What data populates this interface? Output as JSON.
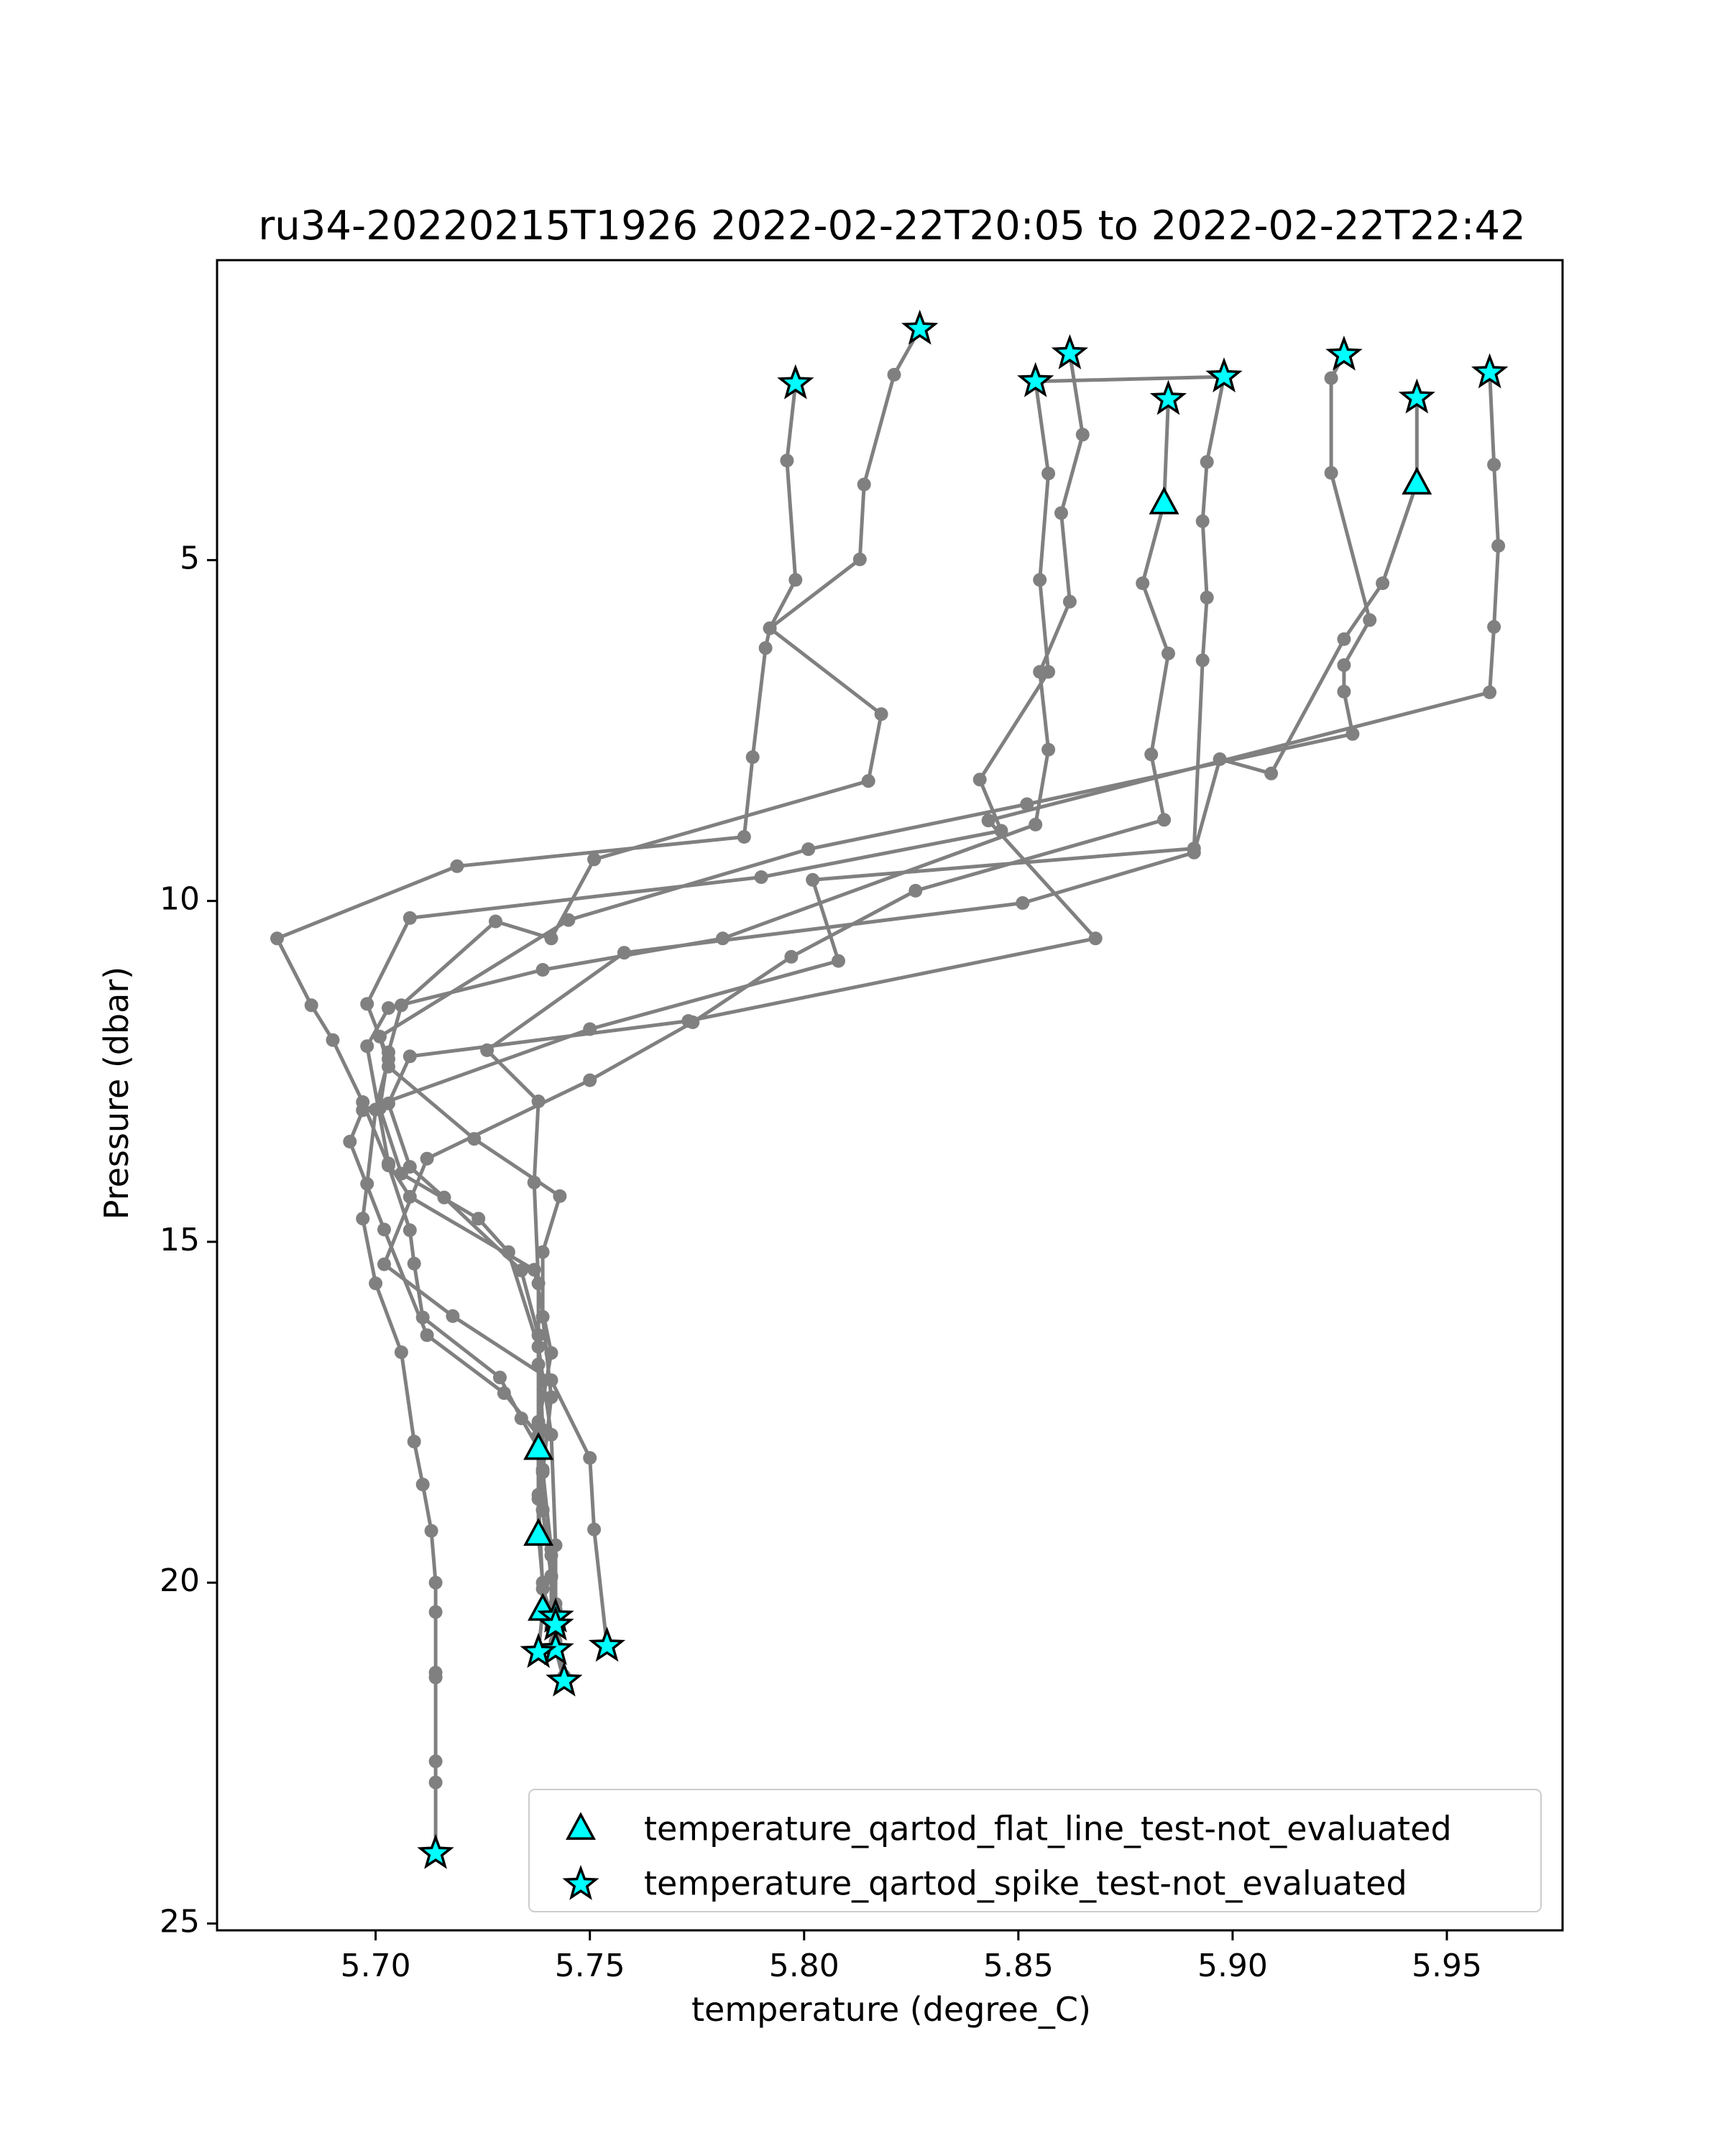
{
  "chart_data": {
    "type": "line",
    "title": "ru34-20220215T1926 2022-02-22T20:05 to 2022-02-22T22:42",
    "xlabel": "temperature (degree_C)",
    "ylabel": "Pressure (dbar)",
    "xlim": [
      5.663,
      5.977
    ],
    "ylim": [
      25.1,
      0.6
    ],
    "y_inverted": true,
    "grid": false,
    "legend_position": "lower-right",
    "xticks": [
      "5.70",
      "5.75",
      "5.80",
      "5.85",
      "5.90",
      "5.95"
    ],
    "xtick_values": [
      5.7,
      5.75,
      5.8,
      5.85,
      5.9,
      5.95
    ],
    "yticks": [
      "5",
      "10",
      "15",
      "20",
      "25"
    ],
    "ytick_values": [
      5,
      10,
      15,
      20,
      25
    ],
    "colors": {
      "profile_line": "#808080",
      "marker_fill": "#00ffff",
      "marker_edge": "#000000"
    },
    "series": [
      {
        "points": [
          [
            5.798,
            2.41
          ],
          [
            5.796,
            3.54
          ],
          [
            5.798,
            5.29
          ],
          [
            5.792,
            6.0
          ],
          [
            5.791,
            6.29
          ],
          [
            5.788,
            7.89
          ],
          [
            5.786,
            9.06
          ],
          [
            5.719,
            9.49
          ],
          [
            5.677,
            10.55
          ],
          [
            5.685,
            11.53
          ],
          [
            5.69,
            12.04
          ],
          [
            5.697,
            12.95
          ],
          [
            5.703,
            13.88
          ],
          [
            5.708,
            14.83
          ],
          [
            5.709,
            15.32
          ],
          [
            5.711,
            16.11
          ],
          [
            5.729,
            16.99
          ],
          [
            5.734,
            17.59
          ],
          [
            5.738,
            18.03
          ],
          [
            5.738,
            18.71
          ],
          [
            5.738,
            19.29
          ],
          [
            5.739,
            20.0
          ],
          [
            5.739,
            20.39
          ],
          [
            5.738,
            21.02
          ]
        ]
      },
      {
        "points": [
          [
            5.827,
            1.61
          ],
          [
            5.821,
            2.28
          ],
          [
            5.814,
            3.89
          ],
          [
            5.813,
            4.99
          ],
          [
            5.792,
            6.0
          ],
          [
            5.818,
            7.26
          ],
          [
            5.815,
            8.24
          ],
          [
            5.751,
            9.39
          ],
          [
            5.741,
            10.55
          ],
          [
            5.728,
            10.3
          ],
          [
            5.706,
            11.53
          ],
          [
            5.703,
            12.22
          ],
          [
            5.701,
            13.04
          ],
          [
            5.706,
            14.0
          ],
          [
            5.724,
            14.66
          ],
          [
            5.731,
            15.15
          ],
          [
            5.738,
            16.54
          ],
          [
            5.741,
            17.83
          ],
          [
            5.742,
            19.45
          ],
          [
            5.742,
            20.39
          ],
          [
            5.744,
            21.37
          ]
        ]
      },
      {
        "points": [
          [
            5.854,
            2.38
          ],
          [
            5.857,
            3.73
          ],
          [
            5.855,
            5.29
          ],
          [
            5.857,
            6.64
          ],
          [
            5.841,
            8.22
          ],
          [
            5.846,
            8.97
          ],
          [
            5.79,
            9.65
          ],
          [
            5.708,
            10.25
          ],
          [
            5.698,
            11.51
          ],
          [
            5.703,
            12.32
          ],
          [
            5.7,
            13.06
          ],
          [
            5.698,
            14.15
          ],
          [
            5.697,
            14.66
          ],
          [
            5.7,
            15.61
          ],
          [
            5.706,
            16.62
          ],
          [
            5.709,
            17.93
          ],
          [
            5.711,
            18.56
          ],
          [
            5.713,
            19.24
          ],
          [
            5.714,
            20.0
          ],
          [
            5.714,
            20.43
          ],
          [
            5.714,
            21.32
          ],
          [
            5.714,
            21.39
          ],
          [
            5.714,
            22.62
          ],
          [
            5.714,
            22.93
          ],
          [
            5.714,
            23.97
          ]
        ]
      },
      {
        "points": [
          [
            5.862,
            1.97
          ],
          [
            5.865,
            3.16
          ],
          [
            5.86,
            4.31
          ],
          [
            5.862,
            5.61
          ],
          [
            5.855,
            6.64
          ],
          [
            5.857,
            7.78
          ],
          [
            5.854,
            8.88
          ],
          [
            5.781,
            10.55
          ],
          [
            5.739,
            11.01
          ],
          [
            5.703,
            11.57
          ],
          [
            5.698,
            12.13
          ],
          [
            5.703,
            13.85
          ],
          [
            5.708,
            14.34
          ],
          [
            5.737,
            15.41
          ],
          [
            5.741,
            16.63
          ],
          [
            5.738,
            17.68
          ],
          [
            5.739,
            18.34
          ],
          [
            5.741,
            19.6
          ],
          [
            5.742,
            20.31
          ],
          [
            5.742,
            20.98
          ],
          [
            5.744,
            21.44
          ]
        ]
      },
      {
        "points": [
          [
            5.854,
            2.38
          ],
          [
            5.898,
            2.31
          ],
          [
            5.894,
            3.56
          ],
          [
            5.893,
            4.43
          ],
          [
            5.894,
            5.55
          ],
          [
            5.893,
            6.47
          ],
          [
            5.891,
            9.23
          ],
          [
            5.802,
            9.69
          ],
          [
            5.808,
            10.88
          ],
          [
            5.75,
            11.88
          ],
          [
            5.697,
            13.07
          ],
          [
            5.694,
            13.53
          ],
          [
            5.702,
            14.82
          ],
          [
            5.712,
            16.37
          ],
          [
            5.73,
            17.22
          ],
          [
            5.738,
            17.84
          ],
          [
            5.739,
            18.93
          ],
          [
            5.741,
            19.92
          ],
          [
            5.742,
            20.5
          ]
        ]
      },
      {
        "points": [
          [
            5.885,
            2.64
          ],
          [
            5.884,
            4.16
          ],
          [
            5.879,
            5.34
          ],
          [
            5.885,
            6.37
          ],
          [
            5.881,
            7.85
          ],
          [
            5.884,
            8.81
          ],
          [
            5.826,
            9.85
          ],
          [
            5.797,
            10.82
          ],
          [
            5.774,
            11.78
          ],
          [
            5.75,
            12.63
          ],
          [
            5.712,
            13.78
          ],
          [
            5.702,
            15.33
          ],
          [
            5.718,
            16.09
          ],
          [
            5.741,
            17.03
          ],
          [
            5.75,
            18.17
          ],
          [
            5.751,
            19.22
          ],
          [
            5.754,
            20.93
          ]
        ]
      },
      {
        "points": [
          [
            5.926,
            1.99
          ],
          [
            5.923,
            2.33
          ],
          [
            5.923,
            3.72
          ],
          [
            5.932,
            5.88
          ],
          [
            5.926,
            6.54
          ],
          [
            5.926,
            6.93
          ],
          [
            5.928,
            7.55
          ],
          [
            5.852,
            8.58
          ],
          [
            5.801,
            9.24
          ],
          [
            5.745,
            10.28
          ],
          [
            5.701,
            11.99
          ],
          [
            5.703,
            12.43
          ],
          [
            5.723,
            13.49
          ],
          [
            5.743,
            14.33
          ],
          [
            5.739,
            15.15
          ],
          [
            5.739,
            16.1
          ],
          [
            5.741,
            17.28
          ],
          [
            5.739,
            18.38
          ],
          [
            5.741,
            19.51
          ],
          [
            5.741,
            20.66
          ],
          [
            5.742,
            20.86
          ]
        ]
      },
      {
        "points": [
          [
            5.943,
            2.62
          ],
          [
            5.943,
            3.87
          ],
          [
            5.935,
            5.34
          ],
          [
            5.926,
            6.16
          ],
          [
            5.909,
            8.13
          ],
          [
            5.897,
            7.92
          ],
          [
            5.891,
            9.29
          ],
          [
            5.851,
            10.03
          ],
          [
            5.758,
            10.76
          ],
          [
            5.726,
            12.19
          ],
          [
            5.738,
            12.94
          ],
          [
            5.737,
            14.13
          ],
          [
            5.738,
            15.61
          ],
          [
            5.738,
            16.8
          ],
          [
            5.738,
            17.64
          ],
          [
            5.738,
            18.77
          ],
          [
            5.739,
            20.09
          ],
          [
            5.742,
            20.62
          ]
        ]
      },
      {
        "points": [
          [
            5.96,
            2.25
          ],
          [
            5.961,
            3.6
          ],
          [
            5.962,
            4.79
          ],
          [
            5.961,
            5.98
          ],
          [
            5.96,
            6.94
          ],
          [
            5.843,
            8.82
          ],
          [
            5.868,
            10.55
          ],
          [
            5.773,
            11.76
          ],
          [
            5.708,
            12.28
          ],
          [
            5.703,
            12.97
          ],
          [
            5.708,
            13.9
          ],
          [
            5.716,
            14.35
          ],
          [
            5.734,
            15.42
          ],
          [
            5.738,
            16.37
          ],
          [
            5.739,
            17.76
          ],
          [
            5.739,
            18.94
          ],
          [
            5.741,
            19.9
          ],
          [
            5.742,
            20.52
          ]
        ]
      }
    ],
    "markers": [
      {
        "name": "temperature_qartod_flat_line_test-not_evaluated",
        "symbol": "triangle",
        "points": [
          [
            5.884,
            4.16
          ],
          [
            5.943,
            3.87
          ],
          [
            5.738,
            18.03
          ],
          [
            5.738,
            19.29
          ],
          [
            5.739,
            20.39
          ]
        ]
      },
      {
        "name": "temperature_qartod_spike_test-not_evaluated",
        "symbol": "star",
        "points": [
          [
            5.798,
            2.41
          ],
          [
            5.827,
            1.61
          ],
          [
            5.854,
            2.38
          ],
          [
            5.862,
            1.97
          ],
          [
            5.898,
            2.31
          ],
          [
            5.885,
            2.64
          ],
          [
            5.926,
            1.99
          ],
          [
            5.943,
            2.62
          ],
          [
            5.96,
            2.25
          ],
          [
            5.754,
            20.93
          ],
          [
            5.742,
            20.98
          ],
          [
            5.744,
            21.44
          ],
          [
            5.738,
            21.02
          ],
          [
            5.742,
            20.5
          ],
          [
            5.742,
            20.62
          ],
          [
            5.714,
            23.97
          ]
        ]
      }
    ]
  }
}
